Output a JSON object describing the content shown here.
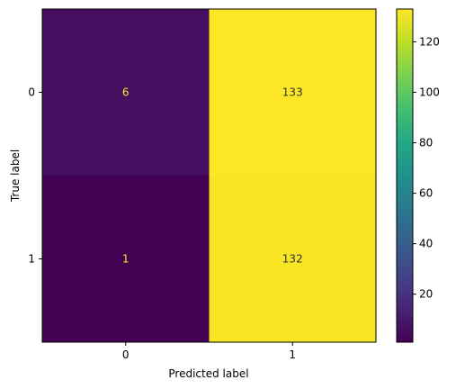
{
  "chart_data": {
    "type": "heatmap",
    "title": "",
    "xlabel": "Predicted label",
    "ylabel": "True label",
    "x_categories": [
      "0",
      "1"
    ],
    "y_categories": [
      "0",
      "1"
    ],
    "values": [
      [
        6,
        133
      ],
      [
        1,
        132
      ]
    ],
    "colormap": "viridis",
    "colorbar": {
      "range": [
        1,
        133
      ],
      "ticks": [
        20,
        40,
        60,
        80,
        100,
        120
      ]
    },
    "annotation_colors": {
      "on_dark": "#fde725",
      "on_light": "#333333"
    },
    "grid": false
  }
}
